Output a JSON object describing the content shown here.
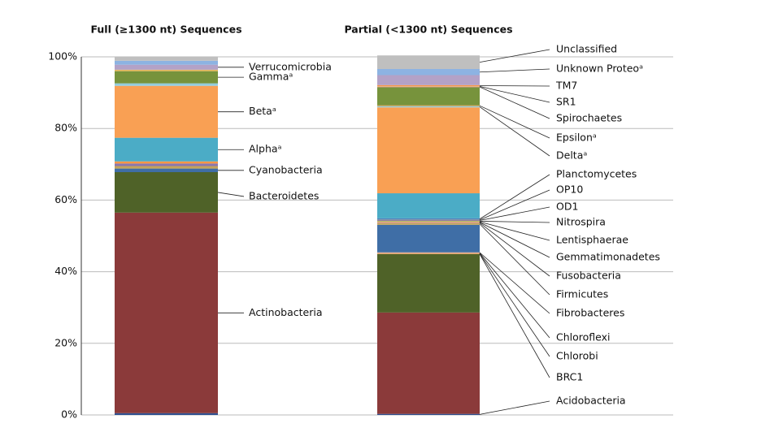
{
  "chart_data": {
    "type": "stacked_bar",
    "categories": [
      "Full (≥1300 nt) Sequences",
      "Partial (<1300 nt) Sequences"
    ],
    "ylim": [
      0,
      100
    ],
    "yticks": [
      {
        "value": 0,
        "label": "0%"
      },
      {
        "value": 20,
        "label": "20%"
      },
      {
        "value": 40,
        "label": "40%"
      },
      {
        "value": 60,
        "label": "60%"
      },
      {
        "value": 80,
        "label": "80%"
      },
      {
        "value": 100,
        "label": "100%"
      }
    ],
    "grid": true,
    "bars": [
      {
        "segments": [
          {
            "name": null,
            "color": "#2f4f8f",
            "value": 0.5
          },
          {
            "name": "Actinobacteria",
            "color": "#8b3a3a",
            "value": 56
          },
          {
            "name": "Bacteroidetes",
            "color": "#4f6228",
            "value": 11.3
          },
          {
            "name": "Cyanobacteria",
            "color": "#3f6ea6",
            "value": 1
          },
          {
            "name": null,
            "color": "#c4a35a",
            "value": 0.7
          },
          {
            "name": null,
            "color": "#8b77b0",
            "value": 0.7
          },
          {
            "name": null,
            "color": "#f79646",
            "value": 0.6
          },
          {
            "name": "Alphaᵃ",
            "color": "#4bacc6",
            "value": 6.6
          },
          {
            "name": "Betaᵃ",
            "color": "#f9a054",
            "value": 14.5
          },
          {
            "name": null,
            "color": "#93cddd",
            "value": 0.7
          },
          {
            "name": "Gammaᵃ",
            "color": "#77933c",
            "value": 3.4
          },
          {
            "name": null,
            "color": "#e6b85c",
            "value": 0.4
          },
          {
            "name": "Verrucomicrobia",
            "color": "#b3a2c7",
            "value": 1.4
          },
          {
            "name": null,
            "color": "#8db3e2",
            "value": 1.1
          },
          {
            "name": null,
            "color": "#bfbfbf",
            "value": 1.1
          }
        ]
      },
      {
        "segments": [
          {
            "name": "Acidobacteria",
            "color": "#2f4f8f",
            "value": 0.3
          },
          {
            "name": null,
            "color": "#8b3a3a",
            "value": 28.3
          },
          {
            "name": null,
            "color": "#4f6228",
            "value": 16.3
          },
          {
            "name": "BRC1",
            "color": "#c4a35a",
            "value": 0.1
          },
          {
            "name": "Chlorobi",
            "color": "#f79646",
            "value": 0.1
          },
          {
            "name": "Chloroflexi",
            "color": "#d99694",
            "value": 0.2
          },
          {
            "name": "Fibrobacteres",
            "color": "#e6b85c",
            "value": 0.1
          },
          {
            "name": null,
            "color": "#3f6ea6",
            "value": 7.7
          },
          {
            "name": "Firmicutes",
            "color": "#c4a35a",
            "value": 0.5
          },
          {
            "name": "Fusobacteria",
            "color": "#8b77b0",
            "value": 0.1
          },
          {
            "name": "Gemmatimonadetes",
            "color": "#f79646",
            "value": 0.2
          },
          {
            "name": "Lentisphaerae",
            "color": "#d99694",
            "value": 0.1
          },
          {
            "name": "Nitrospira",
            "color": "#9bbb59",
            "value": 0.2
          },
          {
            "name": "OD1",
            "color": "#8064a2",
            "value": 0.2
          },
          {
            "name": "OP10",
            "color": "#e6b85c",
            "value": 0.1
          },
          {
            "name": "Planctomycetes",
            "color": "#4f81bd",
            "value": 0.4
          },
          {
            "name": null,
            "color": "#4bacc6",
            "value": 7
          },
          {
            "name": null,
            "color": "#f9a054",
            "value": 24
          },
          {
            "name": "Deltaᵃ",
            "color": "#93cddd",
            "value": 0.3
          },
          {
            "name": "Epsilonᵃ",
            "color": "#c4a35a",
            "value": 0.3
          },
          {
            "name": null,
            "color": "#77933c",
            "value": 5
          },
          {
            "name": "Spirochaetes",
            "color": "#d99694",
            "value": 0.2
          },
          {
            "name": "SR1",
            "color": "#e6b85c",
            "value": 0.1
          },
          {
            "name": "TM7",
            "color": "#f79646",
            "value": 0.3
          },
          {
            "name": null,
            "color": "#b3a2c7",
            "value": 2.8
          },
          {
            "name": "Unknown Proteoᵃ",
            "color": "#8db3e2",
            "value": 1.7
          },
          {
            "name": "Unclassified",
            "color": "#bfbfbf",
            "value": 3.8
          }
        ]
      }
    ]
  }
}
